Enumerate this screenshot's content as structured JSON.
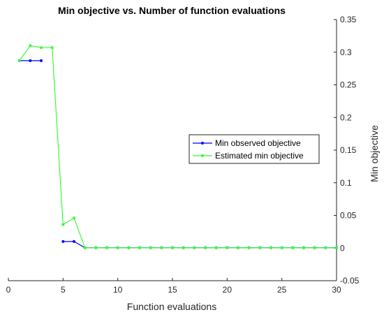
{
  "chart_data": {
    "type": "line",
    "title": "Min objective vs. Number of function evaluations",
    "xlabel": "Function evaluations",
    "ylabel": "Min objective",
    "xlim": [
      0,
      30
    ],
    "ylim": [
      -0.05,
      0.35
    ],
    "xticks": [
      "0",
      "5",
      "10",
      "15",
      "20",
      "25",
      "30"
    ],
    "yticks": [
      "-0.05",
      "0",
      "0.05",
      "0.1",
      "0.15",
      "0.2",
      "0.25",
      "0.3",
      "0.35"
    ],
    "y_axis_side": "right",
    "grid": false,
    "legend_position": "center-right",
    "series": [
      {
        "name": "Min observed objective",
        "color": "#0000ff",
        "x": [
          1,
          2,
          3,
          5,
          6,
          7,
          8,
          9,
          10,
          11,
          12,
          13,
          14,
          15,
          16,
          17,
          18,
          19,
          20,
          21,
          22,
          23,
          24,
          25,
          26,
          27,
          28,
          29,
          30
        ],
        "y": [
          0.287,
          0.287,
          0.287,
          0.01,
          0.01,
          0.0005,
          0.0005,
          0.0005,
          0.0005,
          0.0005,
          0.0005,
          0.0005,
          0.0005,
          0.0005,
          0.0005,
          0.0005,
          0.0005,
          0.0005,
          0.0005,
          0.0005,
          0.0005,
          0.0005,
          0.0005,
          0.0005,
          0.0005,
          0.0005,
          0.0005,
          0.0005,
          0.0005
        ]
      },
      {
        "name": "Estimated min objective",
        "color": "#33ff33",
        "x": [
          1,
          2,
          3,
          4,
          5,
          6,
          7,
          8,
          9,
          10,
          11,
          12,
          13,
          14,
          15,
          16,
          17,
          18,
          19,
          20,
          21,
          22,
          23,
          24,
          25,
          26,
          27,
          28,
          29,
          30
        ],
        "y": [
          0.287,
          0.31,
          0.307,
          0.307,
          0.036,
          0.046,
          0.0005,
          0.0005,
          0.0005,
          0.0005,
          0.0005,
          0.0005,
          0.0005,
          0.0005,
          0.0005,
          0.0005,
          0.0005,
          0.0005,
          0.0005,
          0.0005,
          0.0005,
          0.0005,
          0.0005,
          0.0005,
          0.0005,
          0.0005,
          0.0005,
          0.0005,
          0.0005,
          0.0005
        ]
      }
    ]
  }
}
